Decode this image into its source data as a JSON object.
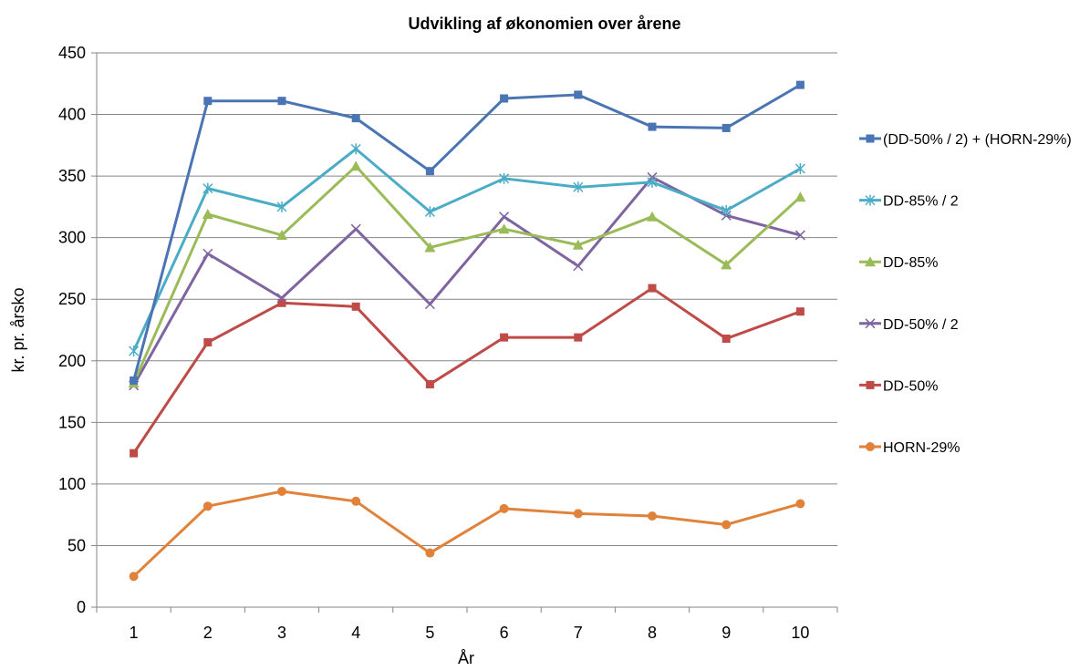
{
  "chart_data": {
    "type": "line",
    "title": "Udvikling af økonomien over årene",
    "xlabel": "År",
    "ylabel": "kr. pr. årsko",
    "categories": [
      "1",
      "2",
      "3",
      "4",
      "5",
      "6",
      "7",
      "8",
      "9",
      "10"
    ],
    "yticks": [
      "0",
      "50",
      "100",
      "150",
      "200",
      "250",
      "300",
      "350",
      "400",
      "450"
    ],
    "ylim": [
      0,
      450
    ],
    "grid": "horizontal",
    "legend_position": "right",
    "series": [
      {
        "name": "(DD-50% / 2) + (HORN-29%)",
        "color": "#4a74b3",
        "marker": "square",
        "values": [
          184,
          411,
          411,
          397,
          354,
          413,
          416,
          390,
          389,
          424
        ]
      },
      {
        "name": "DD-85% / 2",
        "color": "#4bacc6",
        "marker": "star",
        "values": [
          208,
          340,
          325,
          372,
          321,
          348,
          341,
          345,
          322,
          356
        ]
      },
      {
        "name": "DD-85%",
        "color": "#9bbb59",
        "marker": "triangle",
        "values": [
          182,
          319,
          302,
          358,
          292,
          307,
          294,
          317,
          278,
          333
        ]
      },
      {
        "name": "DD-50% / 2",
        "color": "#7e64a0",
        "marker": "x",
        "values": [
          180,
          287,
          251,
          307,
          246,
          317,
          277,
          349,
          318,
          302
        ]
      },
      {
        "name": "DD-50%",
        "color": "#be4b48",
        "marker": "square",
        "values": [
          125,
          215,
          247,
          244,
          181,
          219,
          219,
          259,
          218,
          240
        ]
      },
      {
        "name": "HORN-29%",
        "color": "#e0823a",
        "marker": "circle",
        "values": [
          25,
          82,
          94,
          86,
          44,
          80,
          76,
          74,
          67,
          84
        ]
      }
    ]
  }
}
